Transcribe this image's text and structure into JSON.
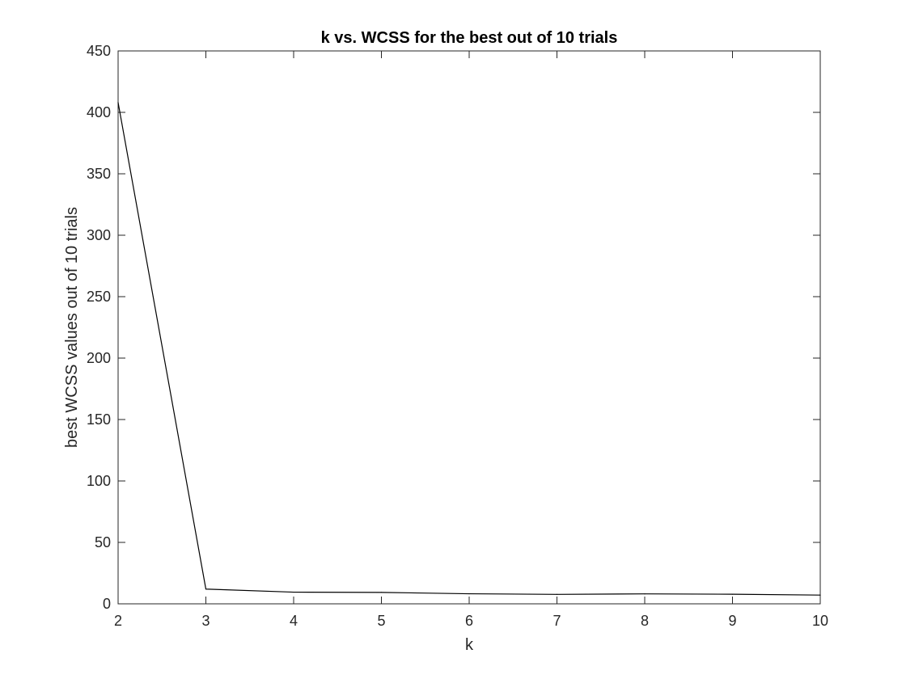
{
  "chart_data": {
    "type": "line",
    "title": "k vs. WCSS for the best out of 10 trials",
    "xlabel": "k",
    "ylabel": "best WCSS values out of 10 trials",
    "xlim": [
      2,
      10
    ],
    "ylim": [
      0,
      450
    ],
    "xticks": [
      "2",
      "3",
      "4",
      "5",
      "6",
      "7",
      "8",
      "9",
      "10"
    ],
    "yticks": [
      "0",
      "50",
      "100",
      "150",
      "200",
      "250",
      "300",
      "350",
      "400",
      "450"
    ],
    "grid": false,
    "legend": "none",
    "series": [
      {
        "color": "#000000",
        "x": [
          2,
          3,
          4,
          5,
          6,
          7,
          8,
          9,
          10
        ],
        "y": [
          408,
          12,
          9.5,
          9.3,
          8.2,
          7.7,
          8.1,
          7.8,
          7.1
        ]
      }
    ]
  }
}
